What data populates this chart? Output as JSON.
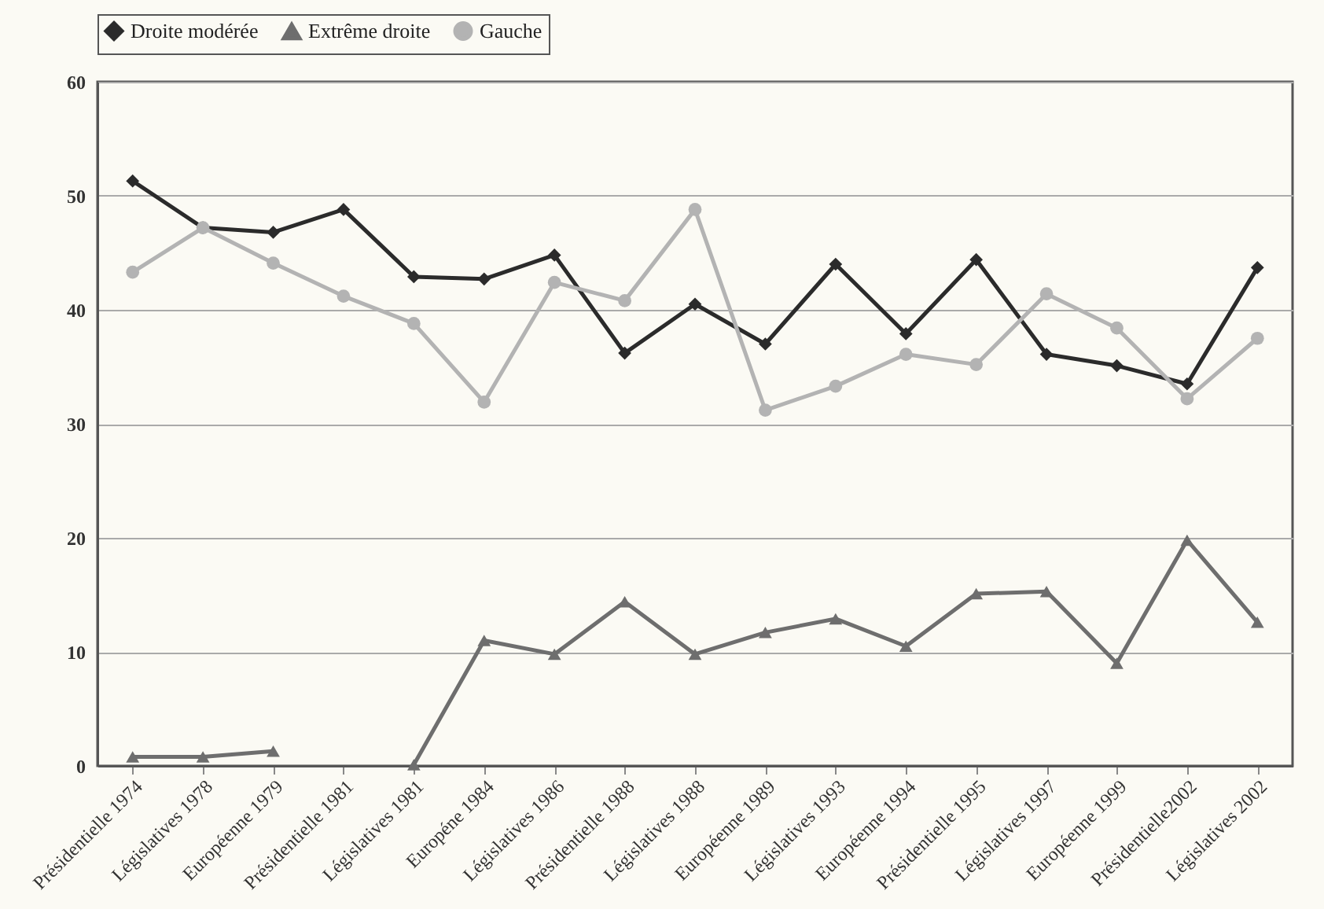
{
  "chart_data": {
    "type": "line",
    "categories": [
      "Présidentielle 1974",
      "Législatives 1978",
      "Européenne 1979",
      "Présidentielle 1981",
      "Législatives 1981",
      "Européne 1984",
      "Législatives 1986",
      "Présidentielle 1988",
      "Législatives 1988",
      "Européenne 1989",
      "Législatives 1993",
      "Européenne 1994",
      "Présidentielle 1995",
      "Législatives 1997",
      "Européenne 1999",
      "Présidentielle2002",
      "Législatives 2002"
    ],
    "series": [
      {
        "name": "Droite modérée",
        "color": "#2b2b2b",
        "marker": "diamond",
        "values": [
          51.3,
          47.2,
          46.8,
          48.8,
          42.9,
          42.7,
          44.8,
          36.2,
          40.5,
          37.0,
          44.0,
          37.9,
          44.4,
          36.1,
          35.1,
          33.5,
          43.7
        ]
      },
      {
        "name": "Extrême droite",
        "color": "#6e6e6e",
        "marker": "triangle",
        "values": [
          0.8,
          0.8,
          1.3,
          null,
          0.1,
          11.0,
          9.8,
          14.4,
          9.8,
          11.7,
          12.9,
          10.5,
          15.1,
          15.3,
          9.0,
          19.8,
          12.6
        ]
      },
      {
        "name": "Gauche",
        "color": "#b3b3b3",
        "marker": "circle",
        "values": [
          43.3,
          47.2,
          44.1,
          41.2,
          38.8,
          31.9,
          42.4,
          40.8,
          48.8,
          31.2,
          33.3,
          36.1,
          35.2,
          41.4,
          38.4,
          32.2,
          37.5
        ]
      }
    ],
    "ylim": [
      0,
      60
    ],
    "yticks": [
      0,
      10,
      20,
      30,
      40,
      50,
      60
    ],
    "grid": "y",
    "legend": "top",
    "line_style": "solid"
  }
}
